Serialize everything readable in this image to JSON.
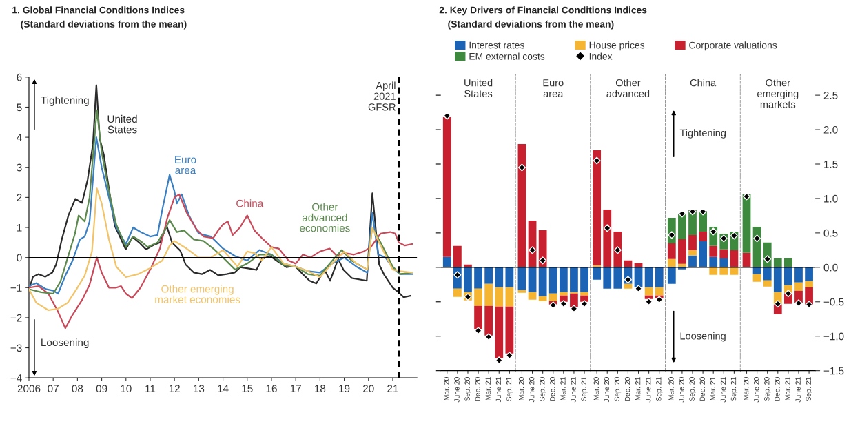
{
  "chart_data": [
    {
      "type": "line",
      "title": "1. Global Financial Conditions Indices",
      "subtitle": "(Standard deviations from the mean)",
      "xlim": [
        2006,
        2022
      ],
      "xticks": [
        2006,
        {
          "value": 2007,
          "label": "07"
        },
        {
          "value": 2008,
          "label": "08"
        },
        {
          "value": 2009,
          "label": "09"
        },
        {
          "value": 2010,
          "label": "10"
        },
        {
          "value": 2011,
          "label": "11"
        },
        {
          "value": 2012,
          "label": "12"
        },
        {
          "value": 2013,
          "label": "13"
        },
        {
          "value": 2014,
          "label": "14"
        },
        {
          "value": 2015,
          "label": "15"
        },
        {
          "value": 2016,
          "label": "16"
        },
        {
          "value": 2017,
          "label": "17"
        },
        {
          "value": 2018,
          "label": "18"
        },
        {
          "value": 2019,
          "label": "19"
        },
        {
          "value": 2020,
          "label": "20"
        },
        {
          "value": 2021,
          "label": "21"
        }
      ],
      "ylim": [
        -4,
        6
      ],
      "yticks": [
        {
          "value": -4,
          "label": "−4"
        },
        {
          "value": -3,
          "label": "−3"
        },
        {
          "value": -2,
          "label": "−2"
        },
        {
          "value": -1,
          "label": "−1"
        },
        0,
        1,
        2,
        3,
        4,
        5,
        6
      ],
      "annotations": [
        "Tightening",
        "Loosening"
      ],
      "ref_lines": [
        {
          "axis": "y",
          "value": 0,
          "color": "#000000",
          "line_style": "solid"
        },
        {
          "axis": "x",
          "value": 2021.25,
          "label": "April 2021 GFSR",
          "color": "#000000",
          "line_style": "dashed"
        }
      ],
      "series": [
        {
          "name": "United States",
          "color": "#2b2b2b",
          "x": [
            2006.0,
            2006.17,
            2006.39,
            2006.67,
            2006.96,
            2007.12,
            2007.35,
            2007.63,
            2007.91,
            2008.19,
            2008.42,
            2008.64,
            2008.78,
            2008.92,
            2009.09,
            2009.31,
            2009.54,
            2009.76,
            2009.99,
            2010.27,
            2010.55,
            2010.83,
            2011.12,
            2011.4,
            2011.68,
            2011.9,
            2012.24,
            2012.46,
            2012.8,
            2013.13,
            2013.47,
            2013.81,
            2014.15,
            2014.48,
            2014.71,
            2015.04,
            2015.38,
            2015.61,
            2015.94,
            2016.28,
            2016.62,
            2016.96,
            2017.29,
            2017.57,
            2017.85,
            2018.19,
            2018.42,
            2018.75,
            2018.97,
            2019.31,
            2019.65,
            2019.93,
            2020.16,
            2020.44,
            2020.66,
            2021.0,
            2021.22,
            2021.45,
            2021.73
          ],
          "values": [
            -1.05,
            -0.64,
            -0.55,
            -0.64,
            -0.5,
            -0.23,
            0.59,
            1.41,
            1.95,
            1.82,
            2.59,
            3.77,
            5.73,
            3.95,
            3.41,
            2.23,
            1.05,
            0.68,
            0.27,
            0.68,
            0.5,
            0.27,
            0.41,
            0.5,
            1.05,
            0.5,
            0.23,
            -0.23,
            -0.5,
            -0.55,
            -0.41,
            -0.59,
            -0.55,
            -0.5,
            -0.32,
            -0.36,
            -0.41,
            -0.05,
            0.05,
            -0.14,
            -0.32,
            -0.27,
            -0.55,
            -0.77,
            -0.86,
            -0.41,
            -0.77,
            -0.05,
            -0.41,
            -0.68,
            -0.73,
            -0.77,
            2.14,
            -0.23,
            -0.59,
            -1.0,
            -1.14,
            -1.32,
            -1.27
          ]
        },
        {
          "name": "Euro area",
          "color": "#3a7fc1",
          "x": [
            2006.0,
            2006.3,
            2006.7,
            2007.0,
            2007.2,
            2007.5,
            2007.8,
            2008.1,
            2008.3,
            2008.5,
            2008.78,
            2009.0,
            2009.3,
            2009.6,
            2010.0,
            2010.3,
            2010.6,
            2011.0,
            2011.3,
            2011.5,
            2011.8,
            2012.0,
            2012.1,
            2012.3,
            2012.6,
            2013.0,
            2013.5,
            2014.0,
            2014.5,
            2015.0,
            2015.5,
            2016.0,
            2016.5,
            2017.0,
            2017.5,
            2018.0,
            2018.5,
            2019.0,
            2019.5,
            2019.95,
            2020.15,
            2020.4,
            2020.7,
            2021.0,
            2021.3,
            2021.8
          ],
          "values": [
            -0.95,
            -0.85,
            -1.05,
            -1.1,
            -1.2,
            -0.6,
            -0.1,
            0.6,
            0.7,
            1.2,
            4.0,
            3.0,
            2.0,
            1.0,
            0.45,
            1.0,
            0.85,
            0.7,
            0.75,
            1.6,
            2.75,
            2.2,
            1.8,
            2.1,
            1.4,
            0.8,
            0.7,
            0.3,
            0.05,
            -0.1,
            0.25,
            0.1,
            -0.2,
            -0.3,
            -0.45,
            -0.5,
            -0.2,
            0.0,
            -0.3,
            -0.5,
            1.5,
            0.1,
            0.0,
            -0.35,
            -0.55,
            -0.55
          ]
        },
        {
          "name": "China",
          "color": "#c84a5a",
          "x": [
            2006.0,
            2006.4,
            2006.8,
            2007.2,
            2007.5,
            2007.8,
            2008.2,
            2008.5,
            2008.8,
            2009.0,
            2009.3,
            2009.6,
            2009.8,
            2010.0,
            2010.25,
            2010.6,
            2011.0,
            2011.4,
            2011.7,
            2012.0,
            2012.2,
            2012.5,
            2012.9,
            2013.2,
            2013.6,
            2013.8,
            2014.0,
            2014.2,
            2014.4,
            2014.7,
            2015.0,
            2015.3,
            2015.6,
            2016.0,
            2016.3,
            2016.7,
            2017.0,
            2017.3,
            2017.6,
            2018.0,
            2018.4,
            2018.7,
            2019.0,
            2019.4,
            2019.8,
            2020.1,
            2020.5,
            2020.9,
            2021.1,
            2021.25,
            2021.5,
            2021.8
          ],
          "values": [
            -1.0,
            -0.95,
            -1.2,
            -1.8,
            -2.35,
            -1.9,
            -1.4,
            -0.9,
            0.0,
            -0.5,
            -1.0,
            -1.0,
            -0.95,
            -1.2,
            -1.35,
            -1.0,
            -0.4,
            0.3,
            1.3,
            2.0,
            2.1,
            1.5,
            0.95,
            0.7,
            0.65,
            0.9,
            1.1,
            1.2,
            0.75,
            1.0,
            1.4,
            0.9,
            0.65,
            0.35,
            0.3,
            -0.1,
            -0.2,
            0.1,
            0.0,
            0.2,
            0.3,
            0.05,
            0.15,
            0.1,
            0.2,
            0.35,
            0.8,
            0.85,
            0.8,
            0.5,
            0.4,
            0.45
          ]
        },
        {
          "name": "Other advanced economies",
          "color": "#5c8a4e",
          "x": [
            2006.0,
            2006.5,
            2007.0,
            2007.3,
            2007.6,
            2007.9,
            2008.05,
            2008.3,
            2008.5,
            2008.8,
            2009.0,
            2009.3,
            2009.6,
            2010.0,
            2010.3,
            2010.6,
            2010.9,
            2011.3,
            2011.6,
            2011.8,
            2012.1,
            2012.4,
            2012.8,
            2013.2,
            2013.6,
            2014.0,
            2014.5,
            2015.0,
            2015.5,
            2016.0,
            2016.5,
            2017.0,
            2017.5,
            2018.0,
            2018.4,
            2018.9,
            2019.3,
            2019.95,
            2020.15,
            2020.5,
            2021.0,
            2021.3,
            2021.8
          ],
          "values": [
            -1.05,
            -1.15,
            -1.2,
            -0.8,
            0.0,
            0.8,
            1.4,
            1.2,
            2.0,
            4.9,
            3.5,
            2.2,
            1.1,
            0.35,
            0.7,
            0.55,
            0.35,
            0.5,
            0.9,
            1.25,
            0.85,
            0.9,
            0.6,
            0.55,
            0.3,
            0.0,
            -0.4,
            -0.2,
            0.1,
            0.1,
            -0.25,
            -0.3,
            -0.55,
            -0.6,
            -0.2,
            0.25,
            -0.1,
            -0.4,
            1.0,
            0.5,
            -0.3,
            -0.55,
            -0.5
          ]
        },
        {
          "name": "Other emerging market economies",
          "color": "#f2c46a",
          "x": [
            2006.0,
            2006.3,
            2006.8,
            2007.2,
            2007.6,
            2008.0,
            2008.3,
            2008.6,
            2008.8,
            2009.0,
            2009.3,
            2009.6,
            2010.0,
            2010.5,
            2011.0,
            2011.5,
            2011.8,
            2012.0,
            2012.5,
            2013.0,
            2013.5,
            2014.0,
            2014.6,
            2015.0,
            2015.3,
            2015.6,
            2016.0,
            2016.5,
            2017.0,
            2017.5,
            2018.0,
            2018.5,
            2019.0,
            2019.5,
            2019.95,
            2020.15,
            2020.5,
            2021.0,
            2021.3,
            2021.8
          ],
          "values": [
            -1.05,
            -1.5,
            -1.75,
            -1.7,
            -1.5,
            -1.0,
            -0.6,
            0.2,
            2.3,
            1.8,
            0.6,
            -0.3,
            -0.65,
            -0.55,
            -0.35,
            -0.1,
            0.4,
            0.55,
            0.3,
            0.0,
            0.0,
            0.25,
            -0.3,
            0.2,
            0.15,
            -0.1,
            0.35,
            -0.2,
            -0.3,
            -0.45,
            -0.65,
            -0.2,
            0.2,
            -0.2,
            -0.4,
            1.0,
            0.4,
            -0.4,
            -0.45,
            -0.5
          ]
        }
      ]
    },
    {
      "type": "bar",
      "stacked": true,
      "title": "2. Key Drivers of Financial Conditions Indices",
      "subtitle": "(Standard deviations from the mean)",
      "legend": "top",
      "tick_labels": "x",
      "categories": [
        "Mar. 20",
        "June 20",
        "Sep. 20",
        "Dec. 20",
        "Mar. 21",
        "June 21",
        "Sep. 21"
      ],
      "ylim": [
        -1.5,
        2.8
      ],
      "yticks": [
        {
          "value": -1.5,
          "label": null
        },
        {
          "value": -1,
          "label": null
        },
        {
          "value": -0.5,
          "label": null
        },
        {
          "value": 0,
          "label": null
        },
        {
          "value": 0.5,
          "label": null
        },
        {
          "value": 1,
          "label": null
        },
        {
          "value": 1.5,
          "label": null
        },
        {
          "value": 2,
          "label": null
        },
        {
          "value": 2.5,
          "label": null
        }
      ],
      "annotations": [
        "United States"
      ],
      "ref_lines": [
        {
          "axis": "y",
          "value": 0,
          "color": "#000000"
        }
      ],
      "series": [
        {
          "name": "Interest rates",
          "color": "#1b63b5",
          "values": [
            0.15,
            -0.31,
            -0.36,
            -0.31,
            -0.24,
            -0.29,
            -0.29
          ]
        },
        {
          "name": "House prices",
          "color": "#f5b531",
          "values": [
            0,
            -0.12,
            -0.12,
            -0.25,
            -0.32,
            -0.28,
            -0.28
          ]
        },
        {
          "name": "Corporate valuations",
          "color": "#c8202e",
          "values": [
            2.03,
            0.31,
            0.04,
            -0.34,
            -0.43,
            -0.75,
            -0.68
          ]
        },
        {
          "name": "EM external costs",
          "color": "#3d8a3e",
          "values": [
            0,
            0,
            0,
            0,
            0,
            0,
            0
          ]
        },
        {
          "name": "Index",
          "type": "scatter",
          "marker": "diamond",
          "color": "#000000",
          "values": [
            2.2,
            -0.11,
            -0.43,
            -0.92,
            -1.01,
            -1.35,
            -1.28
          ]
        }
      ]
    },
    {
      "type": "bar",
      "stacked": true,
      "tick_labels": "x",
      "categories": [
        "Mar. 20",
        "June 20",
        "Sep. 20",
        "Dec. 20",
        "Mar. 21",
        "June 21",
        "Sep. 21"
      ],
      "ylim": [
        -1.5,
        2.8
      ],
      "annotations": [
        "Euro area"
      ],
      "ref_lines": [
        {
          "axis": "y",
          "value": 0,
          "color": "#000000"
        }
      ],
      "series": [
        {
          "color": "#1b63b5",
          "values": [
            -0.33,
            -0.36,
            -0.42,
            -0.38,
            -0.36,
            -0.36,
            -0.36
          ]
        },
        {
          "color": "#f5b531",
          "values": [
            -0.04,
            -0.11,
            -0.07,
            -0.11,
            -0.05,
            -0.02,
            -0.05
          ]
        },
        {
          "color": "#c8202e",
          "values": [
            1.79,
            0.68,
            0.54,
            -0.05,
            -0.09,
            -0.2,
            -0.09
          ]
        },
        {
          "color": "#3d8a3e",
          "values": [
            0,
            0,
            0,
            0,
            0,
            0,
            0
          ]
        },
        {
          "type": "scatter",
          "marker": "diamond",
          "color": "#000000",
          "values": [
            1.45,
            0.25,
            0.1,
            -0.55,
            -0.53,
            -0.6,
            -0.53
          ]
        }
      ]
    },
    {
      "type": "bar",
      "stacked": true,
      "tick_labels": "x",
      "categories": [
        "Mar. 20",
        "June 20",
        "Sep. 20",
        "Dec. 20",
        "Mar. 21",
        "June 21",
        "Sep. 21"
      ],
      "ylim": [
        -1.5,
        2.8
      ],
      "annotations": [
        "Other advanced"
      ],
      "ref_lines": [
        {
          "axis": "y",
          "value": 0,
          "color": "#000000"
        }
      ],
      "series": [
        {
          "color": "#1b63b5",
          "values": [
            -0.18,
            -0.31,
            -0.31,
            -0.24,
            -0.29,
            -0.29,
            -0.29
          ]
        },
        {
          "color": "#f5b531",
          "values": [
            0.03,
            0,
            0,
            -0.07,
            0,
            -0.12,
            -0.12
          ]
        },
        {
          "color": "#c8202e",
          "values": [
            1.67,
            0.84,
            0.52,
            0.1,
            0.06,
            -0.05,
            -0.04
          ]
        },
        {
          "color": "#3d8a3e",
          "values": [
            0,
            0,
            0,
            0,
            0,
            0,
            0
          ]
        },
        {
          "type": "scatter",
          "marker": "diamond",
          "color": "#000000",
          "values": [
            1.55,
            0.57,
            0.25,
            -0.18,
            -0.31,
            -0.5,
            -0.47
          ]
        }
      ]
    },
    {
      "type": "bar",
      "stacked": true,
      "tick_labels": "x",
      "categories": [
        "Mar. 20",
        "June 20",
        "Sep. 20",
        "Dec. 20",
        "Mar. 21",
        "June 21",
        "Sep. 21"
      ],
      "ylim": [
        -1.5,
        2.8
      ],
      "annotations": [
        "China",
        "Tightening",
        "Loosening"
      ],
      "ref_lines": [
        {
          "axis": "y",
          "value": 0,
          "color": "#000000"
        }
      ],
      "series": [
        {
          "color": "#1b63b5",
          "values": [
            -0.24,
            -0.03,
            0.17,
            0.38,
            0.15,
            0.13,
            0
          ]
        },
        {
          "color": "#f5b531",
          "values": [
            0.12,
            0.05,
            0.08,
            null,
            -0.11,
            -0.11,
            -0.11
          ]
        },
        {
          "color": "#c8202e",
          "values": [
            0.23,
            0.36,
            0.22,
            0.14,
            0.16,
            0.13,
            0.25
          ]
        },
        {
          "color": "#3d8a3e",
          "values": [
            0.37,
            0.37,
            0.36,
            0.3,
            0.28,
            0.23,
            0.27
          ]
        },
        {
          "type": "scatter",
          "marker": "diamond",
          "color": "#000000",
          "values": [
            0.47,
            0.78,
            0.81,
            0.81,
            0.52,
            0.42,
            0.46
          ]
        }
      ]
    },
    {
      "type": "bar",
      "stacked": true,
      "categories": [
        "Mar. 20",
        "June 20",
        "Sep. 20",
        "Dec. 20",
        "Mar. 21",
        "June 21",
        "Sep. 21"
      ],
      "ylim": [
        -1.5,
        2.8
      ],
      "yticks": [
        {
          "value": -1.5,
          "label": "−1.5"
        },
        {
          "value": -1,
          "label": "−1.0"
        },
        {
          "value": -0.5,
          "label": "−0.5"
        },
        {
          "value": 0,
          "label": "0.0"
        },
        {
          "value": 0.5,
          "label": "0.5"
        },
        {
          "value": 1,
          "label": "1.0"
        },
        {
          "value": 1.5,
          "label": "1.5"
        },
        {
          "value": 2,
          "label": "2.0"
        },
        {
          "value": 2.5,
          "label": "2.5"
        }
      ],
      "annotations": [
        "Other emerging markets"
      ],
      "ref_lines": [
        {
          "axis": "y",
          "value": 0,
          "color": "#000000"
        }
      ],
      "series": [
        {
          "color": "#1b63b5",
          "values": [
            0,
            -0.1,
            -0.19,
            -0.36,
            -0.26,
            -0.22,
            -0.2
          ]
        },
        {
          "color": "#f5b531",
          "values": [
            null,
            -0.11,
            -0.09,
            -0.18,
            -0.11,
            -0.12,
            -0.09
          ]
        },
        {
          "color": "#c8202e",
          "values": [
            0.21,
            0,
            0,
            -0.14,
            -0.16,
            -0.18,
            -0.25
          ]
        },
        {
          "color": "#3d8a3e",
          "values": [
            0.85,
            0.59,
            0.36,
            0.13,
            0.13,
            null,
            null
          ]
        },
        {
          "type": "scatter",
          "marker": "diamond",
          "color": "#000000",
          "values": [
            1.03,
            0.42,
            0.12,
            -0.53,
            -0.38,
            -0.52,
            -0.54
          ]
        }
      ]
    }
  ]
}
